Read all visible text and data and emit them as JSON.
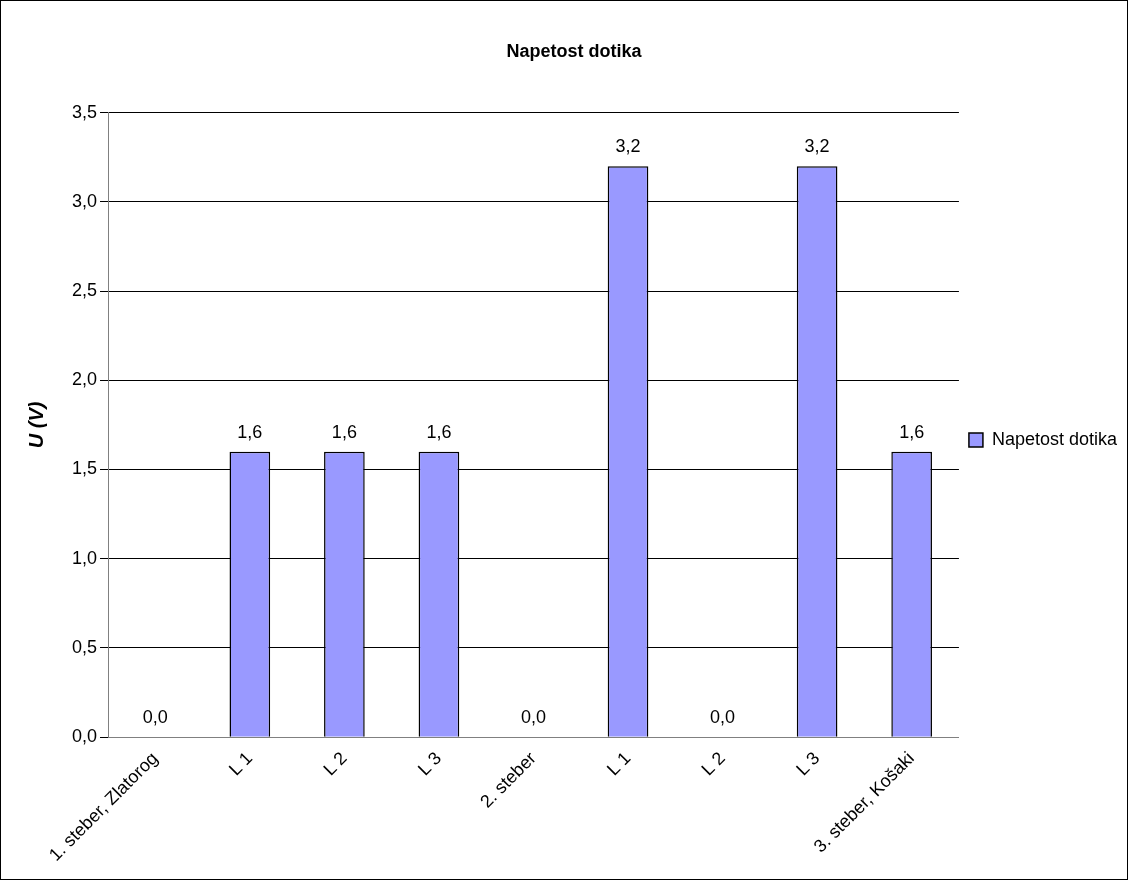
{
  "chart_data": {
    "type": "bar",
    "title": "Napetost dotika",
    "ylabel": "U (V)",
    "categories": [
      "1. steber, Zlatorog",
      "L 1",
      "L 2",
      "L 3",
      "2. steber",
      "L 1",
      "L 2",
      "L 3",
      "3. steber, Košaki"
    ],
    "series": [
      {
        "name": "Napetost dotika",
        "color": "#9999ff",
        "values": [
          0,
          1.6,
          1.6,
          1.6,
          0,
          3.2,
          0,
          3.2,
          1.6
        ],
        "value_labels": [
          "0,0",
          "1,6",
          "1,6",
          "1,6",
          "0,0",
          "3,2",
          "0,0",
          "3,2",
          "1,6"
        ]
      }
    ],
    "ylim": [
      0,
      3.5
    ],
    "yticks": [
      {
        "value": 0,
        "label": "0,0"
      },
      {
        "value": 0.5,
        "label": "0,5"
      },
      {
        "value": 1,
        "label": "1,0"
      },
      {
        "value": 1.5,
        "label": "1,5"
      },
      {
        "value": 2,
        "label": "2,0"
      },
      {
        "value": 2.5,
        "label": "2,5"
      },
      {
        "value": 3,
        "label": "3,0"
      },
      {
        "value": 3.5,
        "label": "3,5"
      }
    ],
    "grid": "y",
    "legend": "right"
  }
}
